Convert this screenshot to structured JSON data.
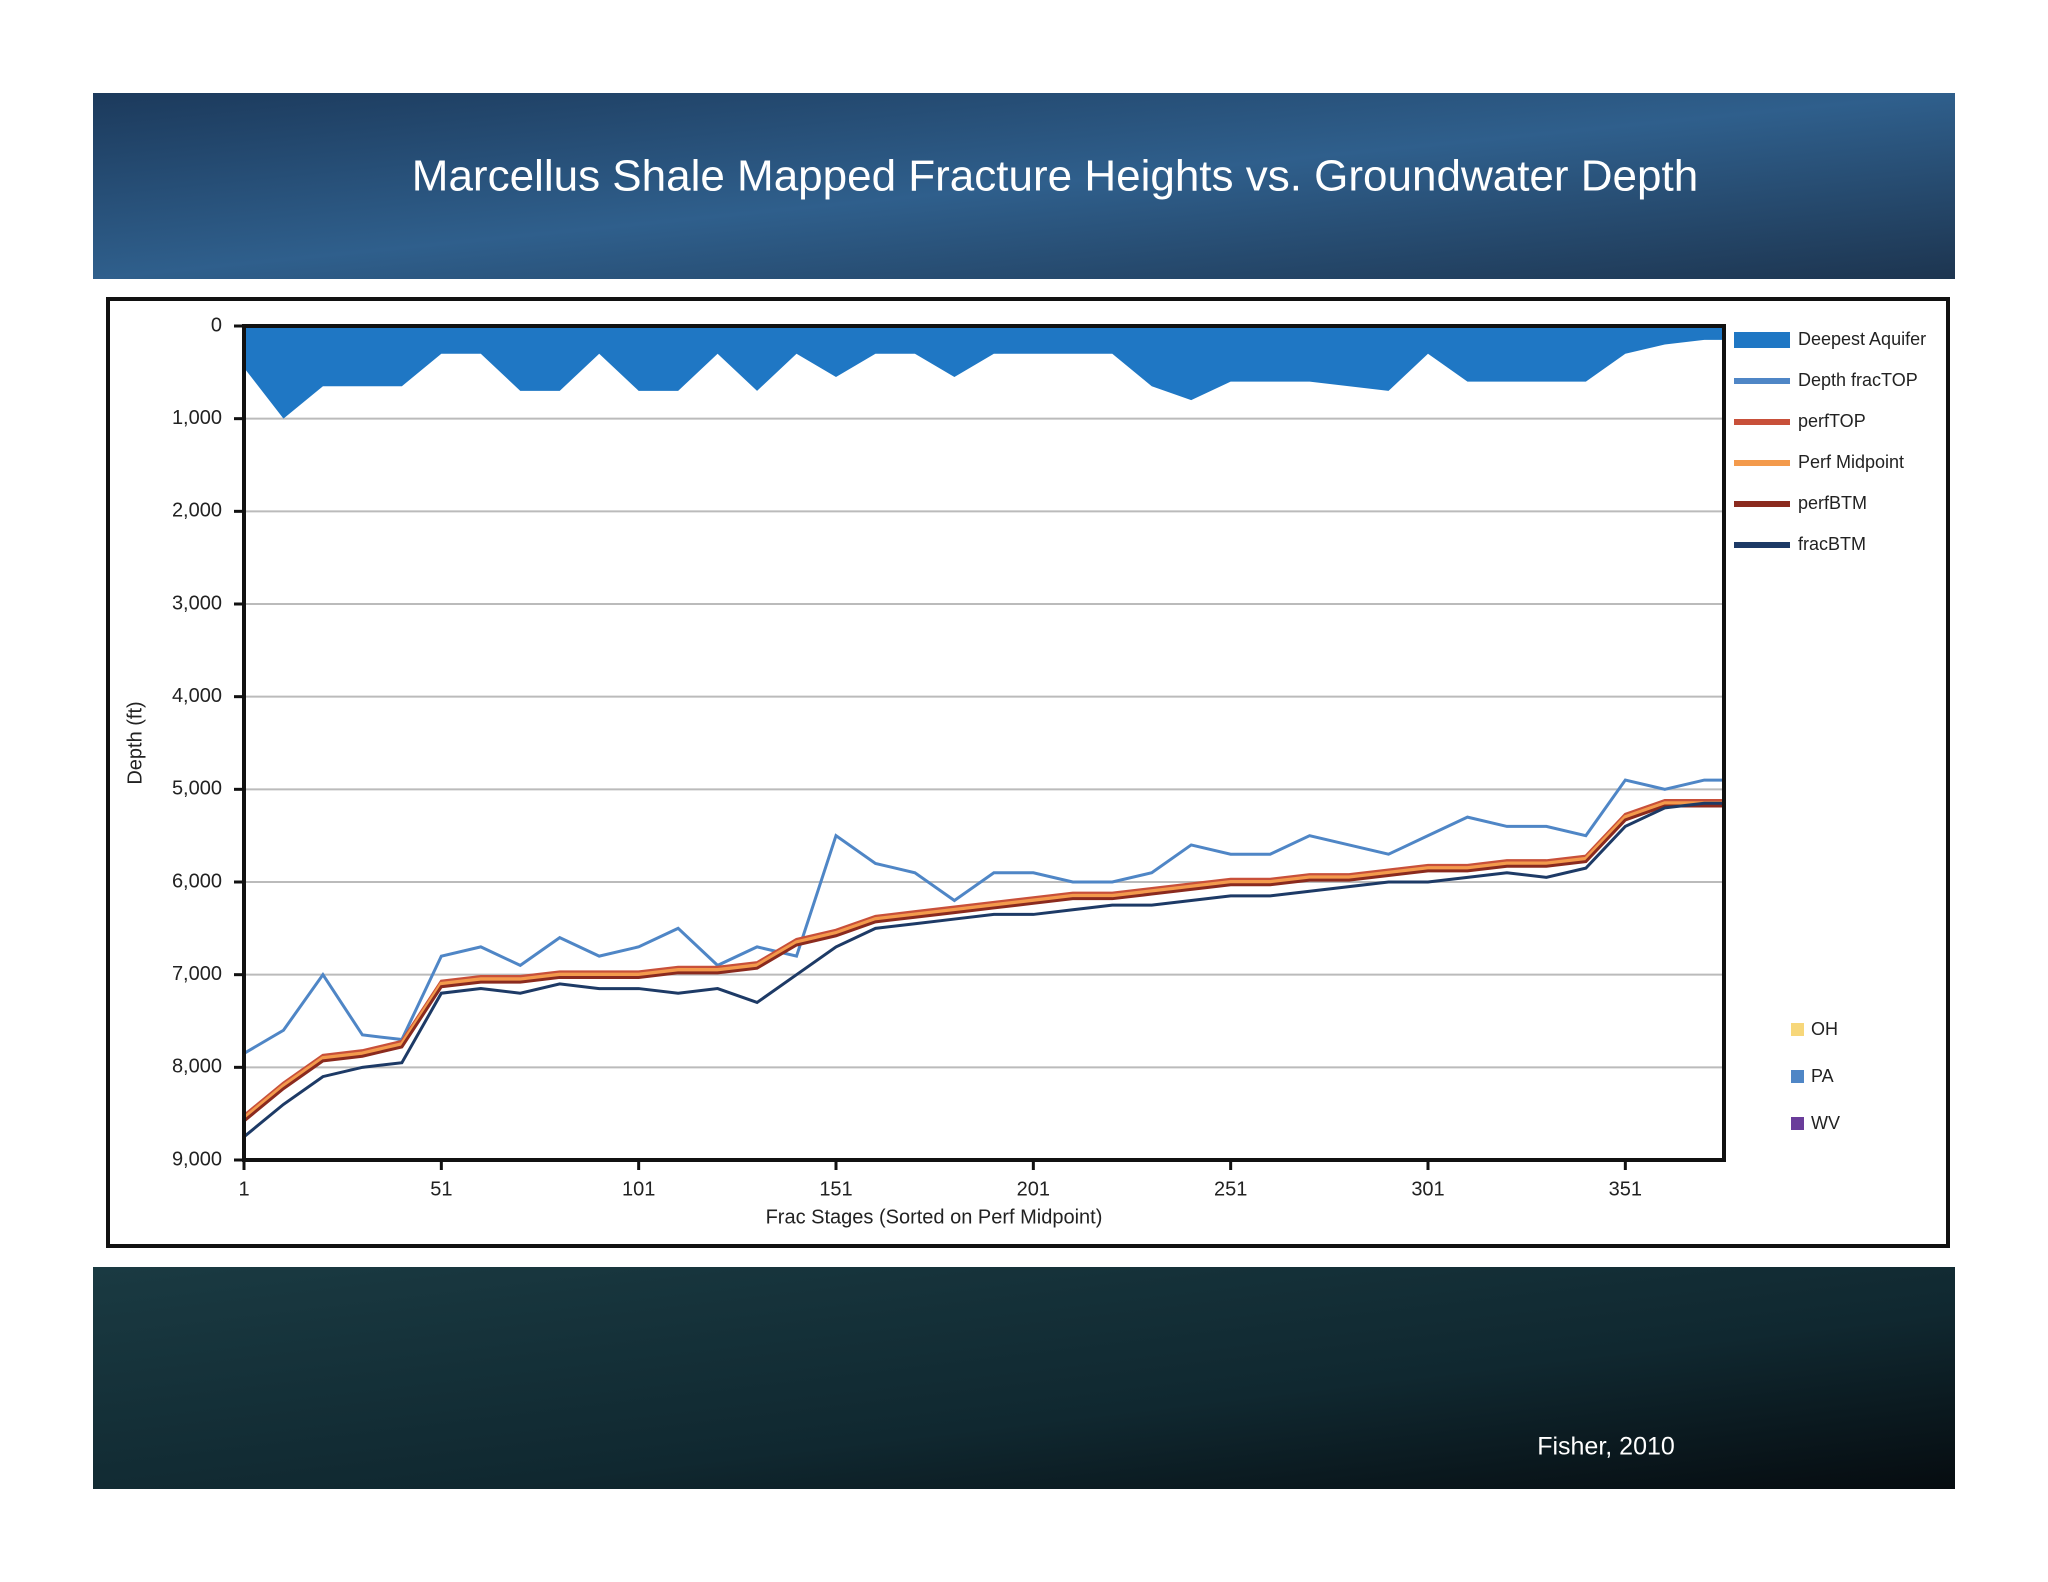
{
  "slide": {
    "title": "Marcellus Shale Mapped Fracture Heights vs. Groundwater Depth",
    "source": "Fisher, 2010"
  },
  "chart_data": {
    "type": "line",
    "y_inverted": true,
    "ylabel": "Depth (ft)",
    "xlabel": "Frac Stages (Sorted on Perf Midpoint)",
    "xlim": [
      1,
      376
    ],
    "xticks": [
      1,
      51,
      101,
      151,
      201,
      251,
      301,
      351
    ],
    "ylim": [
      0,
      9000
    ],
    "yticks": [
      0,
      {
        "value": 1000,
        "label": "1,000"
      },
      {
        "value": 2000,
        "label": "2,000"
      },
      {
        "value": 3000,
        "label": "3,000"
      },
      {
        "value": 4000,
        "label": "4,000"
      },
      {
        "value": 5000,
        "label": "5,000"
      },
      {
        "value": 6000,
        "label": "6,000"
      },
      {
        "value": 7000,
        "label": "7,000"
      },
      {
        "value": 8000,
        "label": "8,000"
      },
      {
        "value": 9000,
        "label": "9,000"
      }
    ],
    "grid": true,
    "legend": "right",
    "x": [
      1,
      11,
      21,
      31,
      41,
      51,
      61,
      71,
      81,
      91,
      101,
      111,
      121,
      131,
      141,
      151,
      161,
      171,
      181,
      191,
      201,
      211,
      221,
      231,
      241,
      251,
      261,
      271,
      281,
      291,
      301,
      311,
      321,
      331,
      341,
      351,
      361,
      371,
      376
    ],
    "series": [
      {
        "name": "Deepest Aquifer",
        "kind": "area",
        "color": "#1f77c4",
        "values": [
          450,
          1000,
          650,
          650,
          650,
          300,
          300,
          700,
          700,
          300,
          700,
          700,
          300,
          700,
          300,
          550,
          300,
          300,
          550,
          300,
          300,
          300,
          300,
          650,
          800,
          600,
          600,
          600,
          650,
          700,
          300,
          600,
          600,
          600,
          600,
          300,
          200,
          150,
          150
        ]
      },
      {
        "name": "Depth fracTOP",
        "color": "#4f86c6",
        "values": [
          7850,
          7600,
          7000,
          7650,
          7700,
          6800,
          6700,
          6900,
          6600,
          6800,
          6700,
          6500,
          6900,
          6700,
          6800,
          5500,
          5800,
          5900,
          6200,
          5900,
          5900,
          6000,
          6000,
          5900,
          5600,
          5700,
          5700,
          5500,
          5600,
          5700,
          5500,
          5300,
          5400,
          5400,
          5500,
          4900,
          5000,
          4900,
          4900
        ]
      },
      {
        "name": "perfTOP",
        "color": "#c8503a",
        "values": [
          8520,
          8170,
          7870,
          7820,
          7720,
          7070,
          7020,
          7020,
          6970,
          6970,
          6970,
          6920,
          6920,
          6870,
          6620,
          6520,
          6370,
          6320,
          6270,
          6220,
          6170,
          6120,
          6120,
          6070,
          6020,
          5970,
          5970,
          5920,
          5920,
          5870,
          5820,
          5820,
          5770,
          5770,
          5720,
          5270,
          5120,
          5120,
          5120
        ]
      },
      {
        "name": "Perf Midpoint",
        "color": "#f39a4c",
        "values": [
          8550,
          8200,
          7900,
          7850,
          7750,
          7100,
          7050,
          7050,
          7000,
          7000,
          7000,
          6950,
          6950,
          6900,
          6650,
          6550,
          6400,
          6350,
          6300,
          6250,
          6200,
          6150,
          6150,
          6100,
          6050,
          6000,
          6000,
          5950,
          5950,
          5900,
          5850,
          5850,
          5800,
          5800,
          5750,
          5300,
          5150,
          5150,
          5150
        ]
      },
      {
        "name": "perfBTM",
        "color": "#8b2a1e",
        "values": [
          8580,
          8230,
          7930,
          7880,
          7780,
          7130,
          7080,
          7080,
          7030,
          7030,
          7030,
          6980,
          6980,
          6930,
          6680,
          6580,
          6430,
          6380,
          6330,
          6280,
          6230,
          6180,
          6180,
          6130,
          6080,
          6030,
          6030,
          5980,
          5980,
          5930,
          5880,
          5880,
          5830,
          5830,
          5780,
          5330,
          5180,
          5180,
          5180
        ]
      },
      {
        "name": "fracBTM",
        "color": "#1d3a66",
        "values": [
          8750,
          8400,
          8100,
          8000,
          7950,
          7200,
          7150,
          7200,
          7100,
          7150,
          7150,
          7200,
          7150,
          7300,
          7000,
          6700,
          6500,
          6450,
          6400,
          6350,
          6350,
          6300,
          6250,
          6250,
          6200,
          6150,
          6150,
          6100,
          6050,
          6000,
          6000,
          5950,
          5900,
          5950,
          5850,
          5400,
          5200,
          5150,
          5150
        ]
      }
    ],
    "state_legend": [
      {
        "name": "OH",
        "color": "#f7d77a"
      },
      {
        "name": "PA",
        "color": "#4f86c6"
      },
      {
        "name": "WV",
        "color": "#6a3d9a"
      }
    ]
  }
}
